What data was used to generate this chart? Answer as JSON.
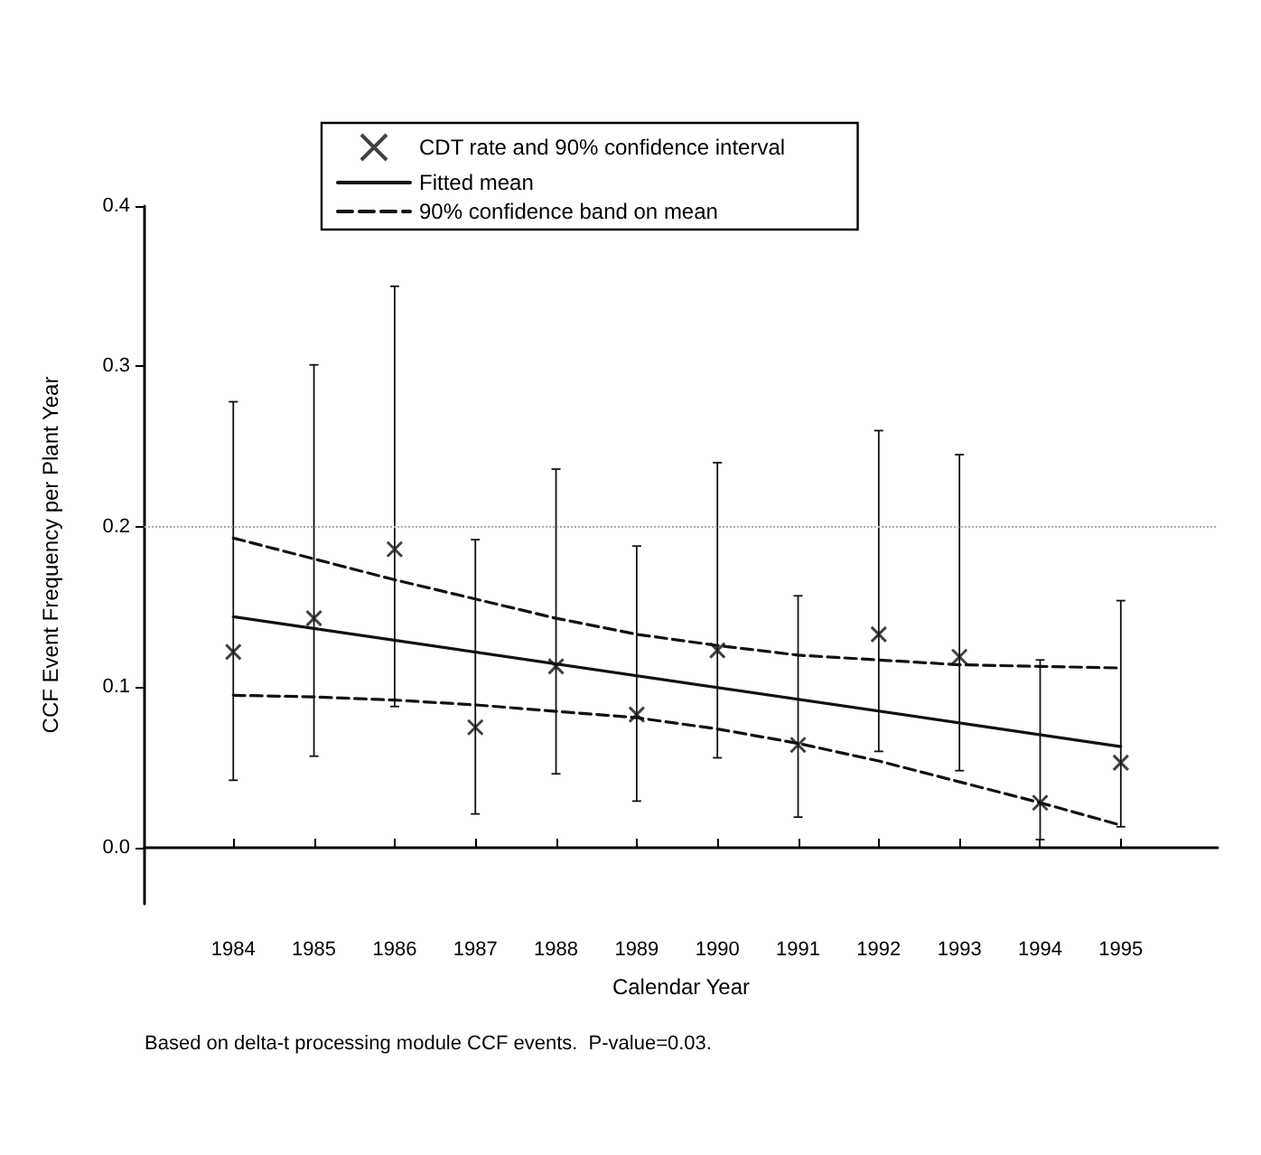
{
  "chart_data": {
    "type": "scatter",
    "xlabel": "Calendar Year",
    "ylabel": "CCF Event Frequency per Plant Year",
    "annotations": [
      "Based on delta-t processing module CCF events.  P-value=0.03."
    ],
    "x": [
      1984,
      1985,
      1986,
      1987,
      1988,
      1989,
      1990,
      1991,
      1992,
      1993,
      1994,
      1995
    ],
    "xlim": [
      1982.9,
      1996.2
    ],
    "xticks": [
      1984,
      1985,
      1986,
      1987,
      1988,
      1989,
      1990,
      1991,
      1992,
      1993,
      1994,
      1995
    ],
    "ylim": [
      -0.035,
      0.4
    ],
    "yticks": [
      {
        "value": 0,
        "label": "0.0"
      },
      0.1,
      0.2,
      0.3,
      0.4
    ],
    "legend": "top",
    "grid": false,
    "ref_lines": [
      {
        "axis": "y",
        "value": 0.2,
        "color": "#aaaaaa",
        "line_style": "dotted"
      }
    ],
    "series": [
      {
        "name": "CDT rate and 90% confidence interval",
        "marker": "cross",
        "color": "#111111",
        "values": [
          0.122,
          0.143,
          0.186,
          0.075,
          0.113,
          0.083,
          0.123,
          0.064,
          0.133,
          0.119,
          0.028,
          0.053
        ],
        "errors": [
          [
            0.042,
            0.278
          ],
          [
            0.057,
            0.301
          ],
          [
            0.088,
            0.35
          ],
          [
            0.021,
            0.192
          ],
          [
            0.046,
            0.236
          ],
          [
            0.029,
            0.188
          ],
          [
            0.056,
            0.24
          ],
          [
            0.019,
            0.157
          ],
          [
            0.06,
            0.26
          ],
          [
            0.048,
            0.245
          ],
          [
            0.005,
            0.117
          ],
          [
            0.013,
            0.154
          ]
        ]
      },
      {
        "name": "Fitted mean",
        "type": "line",
        "line_style": "solid",
        "color": "#111111",
        "x": [
          1984,
          1995
        ],
        "values": [
          0.144,
          0.063
        ]
      },
      {
        "name": "90% confidence band on mean",
        "type": "line",
        "line_style": "dashed",
        "color": "#111111",
        "values": [
          0.193,
          0.18,
          0.167,
          0.155,
          0.143,
          0.133,
          0.126,
          0.12,
          0.117,
          0.114,
          0.113,
          0.112
        ]
      },
      {
        "type": "line",
        "line_style": "dashed",
        "color": "#111111",
        "values": [
          0.095,
          0.094,
          0.092,
          0.089,
          0.085,
          0.081,
          0.074,
          0.065,
          0.054,
          0.041,
          0.028,
          0.014
        ]
      }
    ]
  }
}
